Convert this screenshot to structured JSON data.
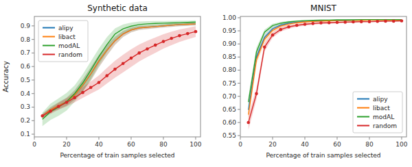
{
  "chart_data": [
    {
      "type": "line",
      "title": "Synthetic data",
      "x_label": "Percentage of train samples selected",
      "y_label": "Accuracy",
      "x": [
        5,
        10,
        15,
        20,
        25,
        30,
        35,
        40,
        45,
        50,
        55,
        60,
        65,
        70,
        75,
        80,
        85,
        90,
        95,
        100
      ],
      "series": [
        {
          "name": "alipy",
          "color": "#1f77b4",
          "values": [
            0.235,
            0.28,
            0.31,
            0.34,
            0.39,
            0.46,
            0.545,
            0.64,
            0.72,
            0.79,
            0.84,
            0.87,
            0.885,
            0.89,
            0.895,
            0.9,
            0.905,
            0.91,
            0.912,
            0.915
          ],
          "std": [
            0.015,
            0.02,
            0.025,
            0.03,
            0.035,
            0.045,
            0.05,
            0.045,
            0.04,
            0.03,
            0.022,
            0.018,
            0.015,
            0.013,
            0.012,
            0.012,
            0.012,
            0.012,
            0.012,
            0.012
          ]
        },
        {
          "name": "libact",
          "color": "#ff7f0e",
          "values": [
            0.235,
            0.28,
            0.31,
            0.34,
            0.39,
            0.46,
            0.545,
            0.64,
            0.72,
            0.79,
            0.84,
            0.87,
            0.885,
            0.89,
            0.895,
            0.9,
            0.905,
            0.91,
            0.912,
            0.915
          ],
          "std": [
            0.015,
            0.02,
            0.025,
            0.03,
            0.035,
            0.045,
            0.05,
            0.045,
            0.04,
            0.03,
            0.022,
            0.018,
            0.015,
            0.013,
            0.012,
            0.012,
            0.012,
            0.012,
            0.012,
            0.012
          ]
        },
        {
          "name": "modAL",
          "color": "#2ca02c",
          "values": [
            0.21,
            0.265,
            0.3,
            0.34,
            0.4,
            0.478,
            0.572,
            0.672,
            0.762,
            0.84,
            0.878,
            0.898,
            0.91,
            0.915,
            0.918,
            0.92,
            0.922,
            0.924,
            0.926,
            0.928
          ],
          "std": [
            0.05,
            0.06,
            0.065,
            0.065,
            0.06,
            0.065,
            0.065,
            0.06,
            0.055,
            0.042,
            0.032,
            0.026,
            0.022,
            0.02,
            0.018,
            0.016,
            0.015,
            0.014,
            0.013,
            0.013
          ]
        },
        {
          "name": "random",
          "color": "#d62728",
          "marker": "circle",
          "values": [
            0.235,
            0.27,
            0.305,
            0.335,
            0.37,
            0.408,
            0.445,
            0.482,
            0.532,
            0.58,
            0.622,
            0.662,
            0.7,
            0.73,
            0.758,
            0.785,
            0.808,
            0.828,
            0.843,
            0.858
          ],
          "std": [
            0.015,
            0.02,
            0.025,
            0.03,
            0.035,
            0.04,
            0.045,
            0.052,
            0.058,
            0.062,
            0.065,
            0.065,
            0.063,
            0.06,
            0.057,
            0.053,
            0.05,
            0.046,
            0.042,
            0.04
          ]
        }
      ],
      "xlim": [
        0,
        103
      ],
      "xticks": [
        0,
        20,
        40,
        60,
        80,
        100
      ],
      "ylim": [
        0.08,
        0.97
      ],
      "yticks": [
        0.1,
        0.2,
        0.3,
        0.4,
        0.5,
        0.6,
        0.7,
        0.8,
        0.9
      ],
      "grid": false,
      "legend": "upper left"
    },
    {
      "type": "line",
      "title": "MNIST",
      "x_label": "Percentage of train samples selected",
      "x": [
        5,
        10,
        15,
        20,
        25,
        30,
        35,
        40,
        45,
        50,
        55,
        60,
        65,
        70,
        75,
        80,
        85,
        90,
        95,
        100
      ],
      "series": [
        {
          "name": "alipy",
          "color": "#1f77b4",
          "values": [
            0.648,
            0.85,
            0.925,
            0.958,
            0.972,
            0.979,
            0.983,
            0.985,
            0.987,
            0.988,
            0.989,
            0.99,
            0.99,
            0.991,
            0.991,
            0.991,
            0.992,
            0.992,
            0.992,
            0.992
          ],
          "std": [
            0.018,
            0.015,
            0.01,
            0.007,
            0.005,
            0.004,
            0.003,
            0.003,
            0.002,
            0.002,
            0.002,
            0.002,
            0.002,
            0.002,
            0.002,
            0.001,
            0.001,
            0.001,
            0.001,
            0.001
          ]
        },
        {
          "name": "libact",
          "color": "#ff7f0e",
          "values": [
            0.63,
            0.84,
            0.918,
            0.952,
            0.968,
            0.976,
            0.981,
            0.984,
            0.986,
            0.987,
            0.988,
            0.989,
            0.989,
            0.99,
            0.99,
            0.991,
            0.991,
            0.991,
            0.991,
            0.992
          ],
          "std": [
            0.022,
            0.018,
            0.012,
            0.008,
            0.006,
            0.005,
            0.004,
            0.003,
            0.003,
            0.002,
            0.002,
            0.002,
            0.002,
            0.002,
            0.002,
            0.001,
            0.001,
            0.001,
            0.001,
            0.001
          ]
        },
        {
          "name": "modAL",
          "color": "#2ca02c",
          "values": [
            0.678,
            0.87,
            0.945,
            0.97,
            0.979,
            0.984,
            0.987,
            0.989,
            0.99,
            0.991,
            0.991,
            0.992,
            0.992,
            0.992,
            0.993,
            0.993,
            0.993,
            0.993,
            0.993,
            0.993
          ],
          "std": [
            0.02,
            0.016,
            0.01,
            0.007,
            0.005,
            0.004,
            0.003,
            0.002,
            0.002,
            0.002,
            0.002,
            0.001,
            0.001,
            0.001,
            0.001,
            0.001,
            0.001,
            0.001,
            0.001,
            0.001
          ]
        },
        {
          "name": "random",
          "color": "#d62728",
          "marker": "circle",
          "values": [
            0.6,
            0.71,
            0.888,
            0.934,
            0.955,
            0.965,
            0.971,
            0.975,
            0.978,
            0.98,
            0.981,
            0.982,
            0.983,
            0.984,
            0.985,
            0.985,
            0.986,
            0.987,
            0.987,
            0.988
          ],
          "std": [
            0.028,
            0.022,
            0.016,
            0.01,
            0.008,
            0.007,
            0.006,
            0.005,
            0.005,
            0.004,
            0.004,
            0.003,
            0.003,
            0.003,
            0.003,
            0.003,
            0.002,
            0.002,
            0.002,
            0.002
          ]
        }
      ],
      "xlim": [
        0,
        103
      ],
      "xticks": [
        0,
        20,
        40,
        60,
        80,
        100
      ],
      "ylim": [
        0.545,
        1.005
      ],
      "yticks": [
        0.55,
        {
          "value": 0.6,
          "label": "0.60"
        },
        0.65,
        {
          "value": 0.7,
          "label": "0.70"
        },
        0.75,
        {
          "value": 0.8,
          "label": "0.80"
        },
        0.85,
        {
          "value": 0.9,
          "label": "0.90"
        },
        0.95,
        {
          "value": 1.0,
          "label": "1.00"
        }
      ],
      "grid": false,
      "legend": "lower right"
    }
  ]
}
